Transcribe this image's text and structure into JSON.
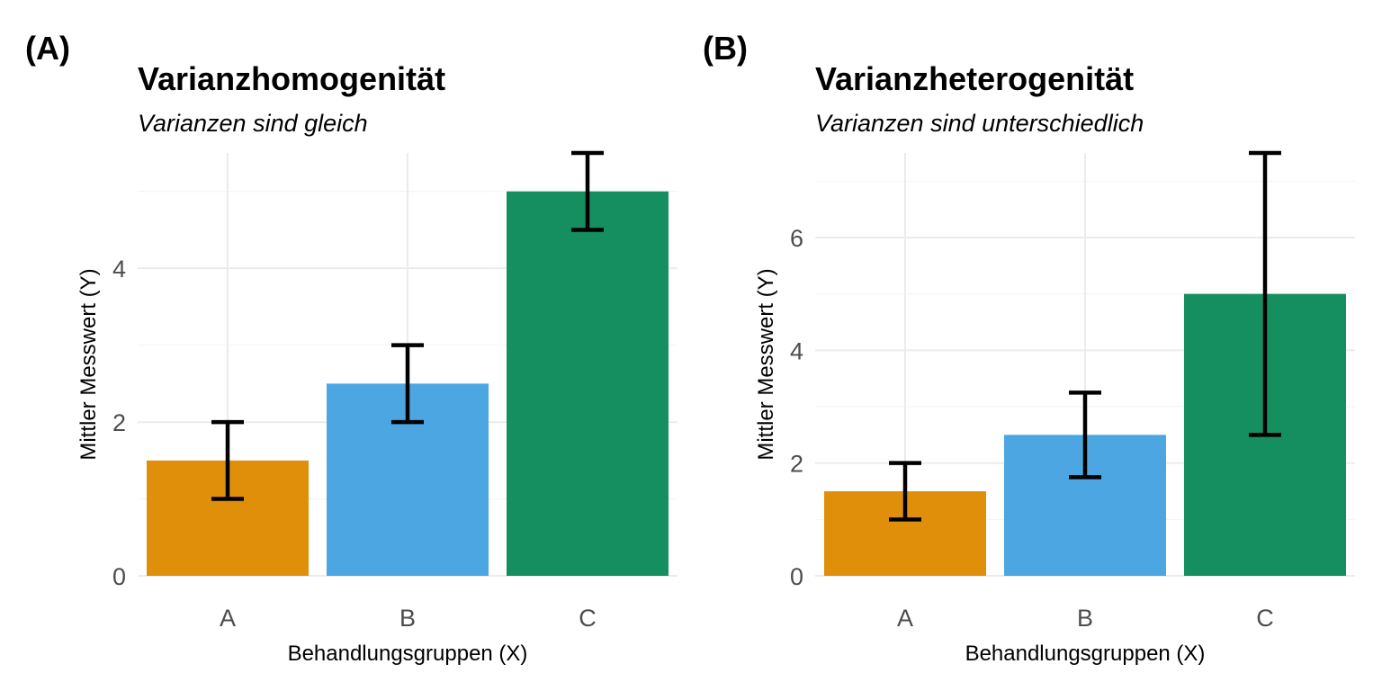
{
  "figure": {
    "panels": [
      {
        "tag": "(A)",
        "title": "Varianzhomogenität",
        "subtitle": "Varianzen sind gleich"
      },
      {
        "tag": "(B)",
        "title": "Varianzheterogenität",
        "subtitle": "Varianzen sind unterschiedlich"
      }
    ]
  },
  "chart_data": [
    {
      "type": "bar",
      "title": "Varianzhomogenität",
      "subtitle": "Varianzen sind gleich",
      "xlabel": "Behandlungsgruppen (X)",
      "ylabel": "Mittler Messwert (Y)",
      "categories": [
        "A",
        "B",
        "C"
      ],
      "values": [
        1.5,
        2.5,
        5
      ],
      "error_low": [
        1.0,
        2.0,
        4.5
      ],
      "error_high": [
        2.0,
        3.0,
        5.5
      ],
      "colors": [
        "#E08F0A",
        "#4BA6E2",
        "#168F60"
      ],
      "ylim": [
        0,
        5.5
      ],
      "yticks": [
        0,
        2,
        4
      ],
      "grid": true,
      "legend": "none"
    },
    {
      "type": "bar",
      "title": "Varianzheterogenität",
      "subtitle": "Varianzen sind unterschiedlich",
      "xlabel": "Behandlungsgruppen (X)",
      "ylabel": "Mittler Messwert (Y)",
      "categories": [
        "A",
        "B",
        "C"
      ],
      "values": [
        1.5,
        2.5,
        5
      ],
      "error_low": [
        1.0,
        1.75,
        2.5
      ],
      "error_high": [
        2.0,
        3.25,
        7.5
      ],
      "colors": [
        "#E08F0A",
        "#4BA6E2",
        "#168F60"
      ],
      "ylim": [
        0,
        7.5
      ],
      "yticks": [
        0,
        2,
        4,
        6
      ],
      "grid": true,
      "legend": "none"
    }
  ]
}
